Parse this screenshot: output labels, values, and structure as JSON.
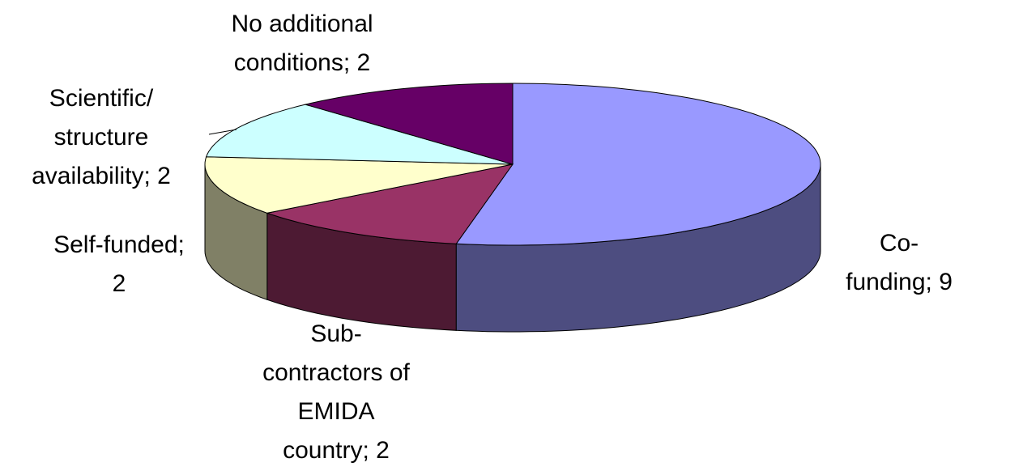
{
  "chart_data": {
    "type": "pie3d",
    "values": [
      9,
      2,
      2,
      2,
      2
    ],
    "value_labels": [
      "Co-funding; 9",
      "Sub-\ncontractors of\nEMIDA\ncountry; 2",
      "Self-funded;\n2",
      "Scientific/\nstructure\navailability; 2",
      "No additional\nconditions; 2"
    ],
    "colors": [
      "#9999ff",
      "#993366",
      "#ffffcc",
      "#ccffff",
      "#660066"
    ]
  }
}
